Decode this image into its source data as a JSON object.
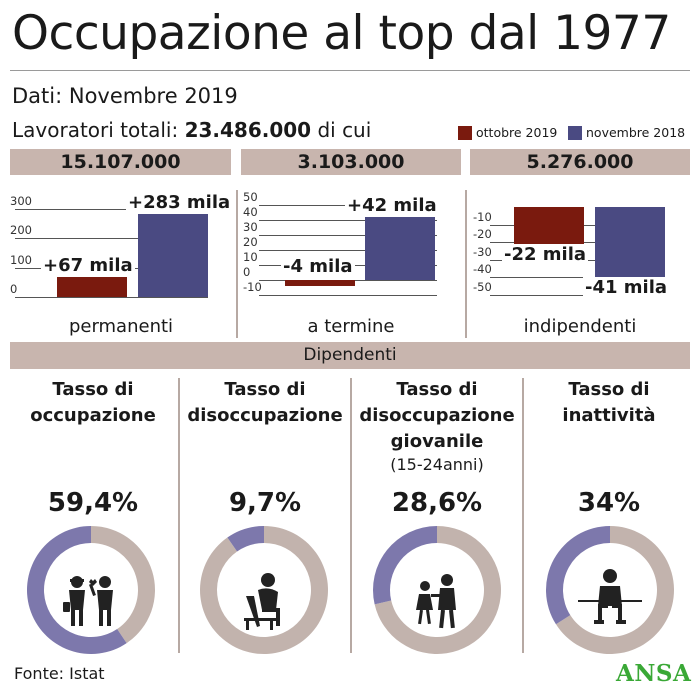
{
  "title": "Occupazione al top dal 1977",
  "subtitle": "Dati: Novembre 2019",
  "totals": {
    "prefix": "Lavoratori totali:",
    "value": "23.486.000",
    "suffix": "di cui"
  },
  "legend": [
    {
      "label": "ottobre 2019",
      "color": "#7a1a0e"
    },
    {
      "label": "novembre 2018",
      "color": "#4a4a82"
    }
  ],
  "chart_data": [
    {
      "type": "bar",
      "header": "15.107.000",
      "category_label": "permanenti",
      "categories": [
        "ottobre 2019",
        "novembre 2018"
      ],
      "values": [
        67,
        283
      ],
      "labels": [
        "+67 mila",
        "+283 mila"
      ],
      "yticks": [
        "300",
        "200",
        "100",
        "0"
      ],
      "ylim": [
        0,
        300
      ]
    },
    {
      "type": "bar",
      "header": "3.103.000",
      "category_label": "a termine",
      "categories": [
        "ottobre 2019",
        "novembre 2018"
      ],
      "values": [
        -4,
        42
      ],
      "labels": [
        "-4 mila",
        "+42 mila"
      ],
      "yticks": [
        "50",
        "40",
        "30",
        "20",
        "10",
        "0",
        "-10"
      ],
      "ylim": [
        -10,
        50
      ]
    },
    {
      "type": "bar",
      "header": "5.276.000",
      "category_label": "indipendenti",
      "categories": [
        "ottobre 2019",
        "novembre 2018"
      ],
      "values": [
        -22,
        -41
      ],
      "labels": [
        "-22 mila",
        "-41 mila"
      ],
      "yticks": [
        "-10",
        "-20",
        "-30",
        "-40",
        "-50"
      ],
      "ylim": [
        -50,
        0
      ]
    },
    {
      "type": "pie",
      "title": [
        "Tasso di",
        "occupazione"
      ],
      "value_label": "59,4%",
      "values": [
        59.4,
        40.6
      ],
      "icon": "workers-icon"
    },
    {
      "type": "pie",
      "title": [
        "Tasso di",
        "disoccupazione"
      ],
      "value_label": "9,7%",
      "values": [
        9.7,
        90.3
      ],
      "icon": "seated-person-icon"
    },
    {
      "type": "pie",
      "title": [
        "Tasso di",
        "disoccupazione",
        "giovanile"
      ],
      "subtitle": "(15-24anni)",
      "value_label": "28,6%",
      "values": [
        28.6,
        71.4
      ],
      "icon": "young-people-icon"
    },
    {
      "type": "pie",
      "title": [
        "Tasso di",
        "inattività"
      ],
      "value_label": "34%",
      "values": [
        34,
        66
      ],
      "icon": "sitting-person-icon"
    }
  ],
  "section_label": "Dipendenti",
  "donut_colors": {
    "value": "#7d78ac",
    "rest": "#c2b3ad"
  },
  "source": "Fonte: Istat",
  "logo_text": "ANSA"
}
